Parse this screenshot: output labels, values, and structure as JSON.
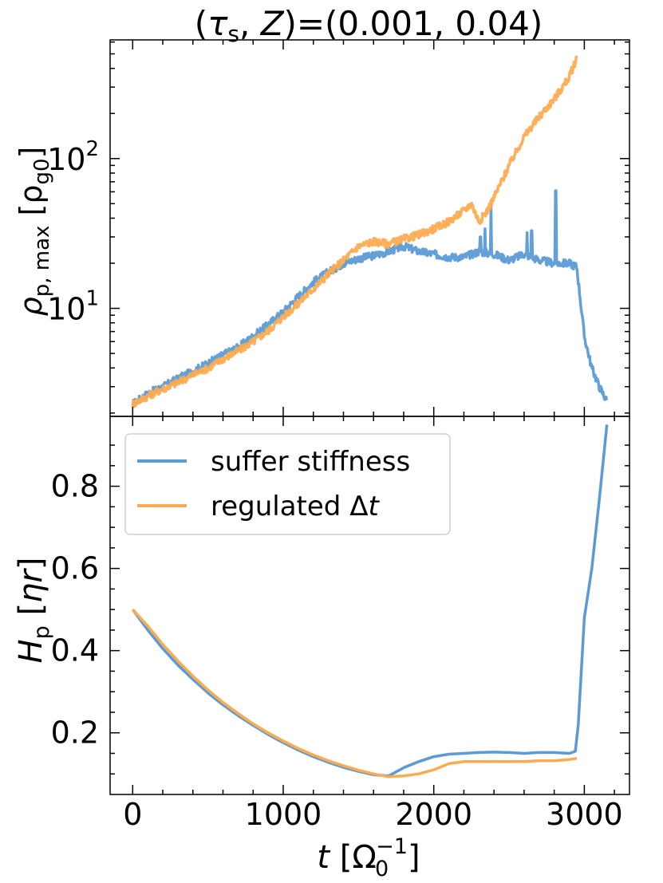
{
  "title": {
    "open": "(",
    "tau": "τ",
    "tau_sub": "s",
    "mid": ", ",
    "z": "Z",
    "close": ")=(0.001, 0.04)"
  },
  "colors": {
    "suffer": "#5b9bd5",
    "regulated": "#fdab50",
    "axis": "#000000"
  },
  "xaxis": {
    "range": [
      -150,
      3300
    ],
    "ticks": [
      0,
      1000,
      2000,
      3000
    ],
    "tick_labels": [
      "0",
      "1000",
      "2000",
      "3000"
    ],
    "label": {
      "t": "t",
      "open": " [Ω",
      "sub": "0",
      "sup": "−1",
      "close": "]"
    }
  },
  "chart_data": [
    {
      "type": "line",
      "yscale": "log",
      "ylim": [
        1.9,
        620
      ],
      "ylabel": {
        "rho": "ρ",
        "sub": "p, max",
        "open": " [ρ",
        "sub2": "g0",
        "close": "]"
      },
      "ytick_labels": [
        {
          "base": "10",
          "exp": "2",
          "value": 100
        },
        {
          "base": "10",
          "exp": "1",
          "value": 10
        }
      ],
      "series": [
        {
          "name": "suffer stiffness",
          "x": [
            0,
            100,
            200,
            300,
            400,
            500,
            600,
            700,
            800,
            900,
            1000,
            1100,
            1200,
            1300,
            1400,
            1500,
            1600,
            1700,
            1800,
            1900,
            2000,
            2100,
            2200,
            2300,
            2400,
            2500,
            2600,
            2700,
            2800,
            2900,
            2950,
            3000,
            3050,
            3100,
            3150
          ],
          "values": [
            2.3,
            2.7,
            3.0,
            3.4,
            3.8,
            4.3,
            4.9,
            5.5,
            6.5,
            7.8,
            9.5,
            12,
            15,
            17.5,
            20,
            21.5,
            22.5,
            24,
            26,
            24,
            23,
            22,
            22,
            24,
            23,
            21,
            23,
            21,
            20,
            20,
            19,
            6.5,
            4.0,
            3.0,
            2.4
          ],
          "spikes": [
            {
              "x": 2310,
              "value": 30
            },
            {
              "x": 2340,
              "value": 34
            },
            {
              "x": 2380,
              "value": 47
            },
            {
              "x": 2620,
              "value": 32
            },
            {
              "x": 2650,
              "value": 33
            },
            {
              "x": 2810,
              "value": 61
            }
          ]
        },
        {
          "name": "regulated Δt",
          "x": [
            0,
            100,
            200,
            300,
            400,
            500,
            600,
            700,
            800,
            900,
            1000,
            1100,
            1200,
            1300,
            1400,
            1500,
            1600,
            1700,
            1800,
            1900,
            2000,
            2100,
            2200,
            2250,
            2300,
            2350,
            2400,
            2500,
            2600,
            2700,
            2800,
            2900,
            2950
          ],
          "values": [
            2.3,
            2.6,
            2.9,
            3.2,
            3.6,
            4.0,
            4.6,
            5.2,
            6.0,
            7.1,
            8.8,
            10.8,
            13.5,
            17,
            21,
            26,
            28,
            27,
            29,
            31,
            34,
            38,
            45,
            50,
            38,
            44,
            55,
            90,
            140,
            190,
            250,
            350,
            470
          ]
        }
      ]
    },
    {
      "type": "line",
      "yscale": "linear",
      "ylim": [
        0.05,
        0.97
      ],
      "yticks": [
        0.2,
        0.4,
        0.6,
        0.8
      ],
      "ytick_labels": [
        "0.2",
        "0.4",
        "0.6",
        "0.8"
      ],
      "ylabel": {
        "h": "H",
        "sub": "p",
        "open": " [",
        "eta": "ηr",
        "close": "]"
      },
      "legend": {
        "position": "top-left"
      },
      "series": [
        {
          "name": "suffer stiffness",
          "x": [
            0,
            100,
            200,
            300,
            400,
            500,
            600,
            700,
            800,
            900,
            1000,
            1100,
            1200,
            1300,
            1400,
            1500,
            1600,
            1700,
            1800,
            1900,
            2000,
            2100,
            2200,
            2300,
            2400,
            2500,
            2600,
            2700,
            2800,
            2900,
            2940,
            2960,
            2980,
            3000,
            3050,
            3100,
            3150
          ],
          "values": [
            0.5,
            0.45,
            0.405,
            0.365,
            0.33,
            0.297,
            0.268,
            0.242,
            0.218,
            0.196,
            0.176,
            0.158,
            0.142,
            0.128,
            0.116,
            0.106,
            0.098,
            0.095,
            0.115,
            0.13,
            0.142,
            0.148,
            0.15,
            0.152,
            0.153,
            0.152,
            0.15,
            0.152,
            0.152,
            0.15,
            0.155,
            0.22,
            0.35,
            0.48,
            0.6,
            0.77,
            0.95
          ]
        },
        {
          "name": "regulated Δt",
          "x": [
            0,
            100,
            200,
            300,
            400,
            500,
            600,
            700,
            800,
            900,
            1000,
            1100,
            1200,
            1300,
            1400,
            1500,
            1600,
            1700,
            1800,
            1900,
            2000,
            2100,
            2200,
            2300,
            2400,
            2500,
            2600,
            2700,
            2800,
            2900,
            2950
          ],
          "values": [
            0.5,
            0.46,
            0.415,
            0.375,
            0.338,
            0.304,
            0.274,
            0.247,
            0.222,
            0.2,
            0.18,
            0.162,
            0.146,
            0.132,
            0.12,
            0.109,
            0.1,
            0.093,
            0.095,
            0.1,
            0.11,
            0.125,
            0.13,
            0.13,
            0.13,
            0.13,
            0.13,
            0.132,
            0.132,
            0.135,
            0.138
          ]
        }
      ]
    }
  ]
}
